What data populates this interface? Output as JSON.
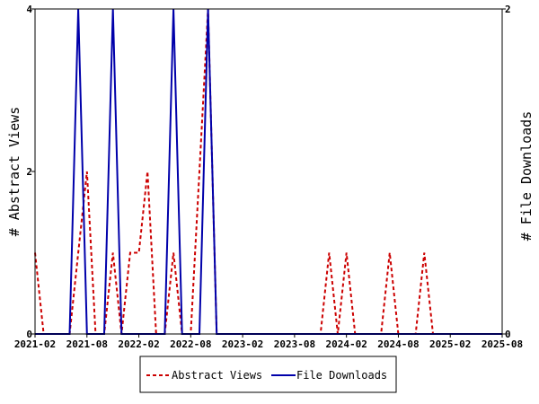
{
  "chart_data": {
    "type": "line",
    "xlabel": "",
    "ylabel_left": "# Abstract Views",
    "ylabel_right": "# File Downloads",
    "x_ticks": [
      "2021-02",
      "2021-08",
      "2022-02",
      "2022-08",
      "2023-02",
      "2023-08",
      "2024-02",
      "2024-08",
      "2025-02",
      "2025-08"
    ],
    "xlim": [
      "2021-02",
      "2025-08"
    ],
    "ylim_left": [
      0,
      4
    ],
    "ylim_right": [
      0,
      2
    ],
    "y_ticks_left": [
      "0",
      "2",
      "4"
    ],
    "y_ticks_right": [
      "0",
      "2"
    ],
    "legend_placement": "bottom",
    "grid": false,
    "series": [
      {
        "name": "Abstract Views",
        "axis": "left",
        "color": "#cc0000",
        "style": "dashed",
        "points": [
          [
            "2021-02",
            1
          ],
          [
            "2021-03",
            0
          ],
          [
            "2021-04",
            0
          ],
          [
            "2021-05",
            0
          ],
          [
            "2021-06",
            0
          ],
          [
            "2021-07",
            1
          ],
          [
            "2021-08",
            2
          ],
          [
            "2021-09",
            0
          ],
          [
            "2021-10",
            0
          ],
          [
            "2021-11",
            1
          ],
          [
            "2021-12",
            0
          ],
          [
            "2022-01",
            1
          ],
          [
            "2022-02",
            1
          ],
          [
            "2022-03",
            2
          ],
          [
            "2022-04",
            0
          ],
          [
            "2022-05",
            0
          ],
          [
            "2022-06",
            1
          ],
          [
            "2022-07",
            0
          ],
          [
            "2022-08",
            0
          ],
          [
            "2022-09",
            2
          ],
          [
            "2022-10",
            4
          ],
          [
            "2022-11",
            0
          ],
          [
            "2022-12",
            0
          ],
          [
            "2023-01",
            0
          ],
          [
            "2023-02",
            0
          ],
          [
            "2023-03",
            0
          ],
          [
            "2023-04",
            0
          ],
          [
            "2023-05",
            0
          ],
          [
            "2023-06",
            0
          ],
          [
            "2023-07",
            0
          ],
          [
            "2023-08",
            0
          ],
          [
            "2023-09",
            0
          ],
          [
            "2023-10",
            0
          ],
          [
            "2023-11",
            0
          ],
          [
            "2023-12",
            1
          ],
          [
            "2024-01",
            0
          ],
          [
            "2024-02",
            1
          ],
          [
            "2024-03",
            0
          ],
          [
            "2024-04",
            0
          ],
          [
            "2024-05",
            0
          ],
          [
            "2024-06",
            0
          ],
          [
            "2024-07",
            1
          ],
          [
            "2024-08",
            0
          ],
          [
            "2024-09",
            0
          ],
          [
            "2024-10",
            0
          ],
          [
            "2024-11",
            1
          ],
          [
            "2024-12",
            0
          ],
          [
            "2025-01",
            0
          ],
          [
            "2025-02",
            0
          ],
          [
            "2025-03",
            0
          ],
          [
            "2025-04",
            0
          ],
          [
            "2025-05",
            0
          ],
          [
            "2025-06",
            0
          ],
          [
            "2025-07",
            0
          ],
          [
            "2025-08",
            0
          ]
        ]
      },
      {
        "name": "File Downloads",
        "axis": "right",
        "color": "#0000aa",
        "style": "solid",
        "points": [
          [
            "2021-02",
            0
          ],
          [
            "2021-03",
            0
          ],
          [
            "2021-04",
            0
          ],
          [
            "2021-05",
            0
          ],
          [
            "2021-06",
            0
          ],
          [
            "2021-07",
            2
          ],
          [
            "2021-08",
            0
          ],
          [
            "2021-09",
            0
          ],
          [
            "2021-10",
            0
          ],
          [
            "2021-11",
            2
          ],
          [
            "2021-12",
            0
          ],
          [
            "2022-01",
            0
          ],
          [
            "2022-02",
            0
          ],
          [
            "2022-03",
            0
          ],
          [
            "2022-04",
            0
          ],
          [
            "2022-05",
            0
          ],
          [
            "2022-06",
            2
          ],
          [
            "2022-07",
            0
          ],
          [
            "2022-08",
            0
          ],
          [
            "2022-09",
            0
          ],
          [
            "2022-10",
            2
          ],
          [
            "2022-11",
            0
          ],
          [
            "2022-12",
            0
          ],
          [
            "2023-01",
            0
          ],
          [
            "2023-02",
            0
          ],
          [
            "2023-03",
            0
          ],
          [
            "2023-04",
            0
          ],
          [
            "2023-05",
            0
          ],
          [
            "2023-06",
            0
          ],
          [
            "2023-07",
            0
          ],
          [
            "2023-08",
            0
          ],
          [
            "2023-09",
            0
          ],
          [
            "2023-10",
            0
          ],
          [
            "2023-11",
            0
          ],
          [
            "2023-12",
            0
          ],
          [
            "2024-01",
            0
          ],
          [
            "2024-02",
            0
          ],
          [
            "2024-03",
            0
          ],
          [
            "2024-04",
            0
          ],
          [
            "2024-05",
            0
          ],
          [
            "2024-06",
            0
          ],
          [
            "2024-07",
            0
          ],
          [
            "2024-08",
            0
          ],
          [
            "2024-09",
            0
          ],
          [
            "2024-10",
            0
          ],
          [
            "2024-11",
            0
          ],
          [
            "2024-12",
            0
          ],
          [
            "2025-01",
            0
          ],
          [
            "2025-02",
            0
          ],
          [
            "2025-03",
            0
          ],
          [
            "2025-04",
            0
          ],
          [
            "2025-05",
            0
          ],
          [
            "2025-06",
            0
          ],
          [
            "2025-07",
            0
          ],
          [
            "2025-08",
            0
          ]
        ]
      }
    ]
  }
}
